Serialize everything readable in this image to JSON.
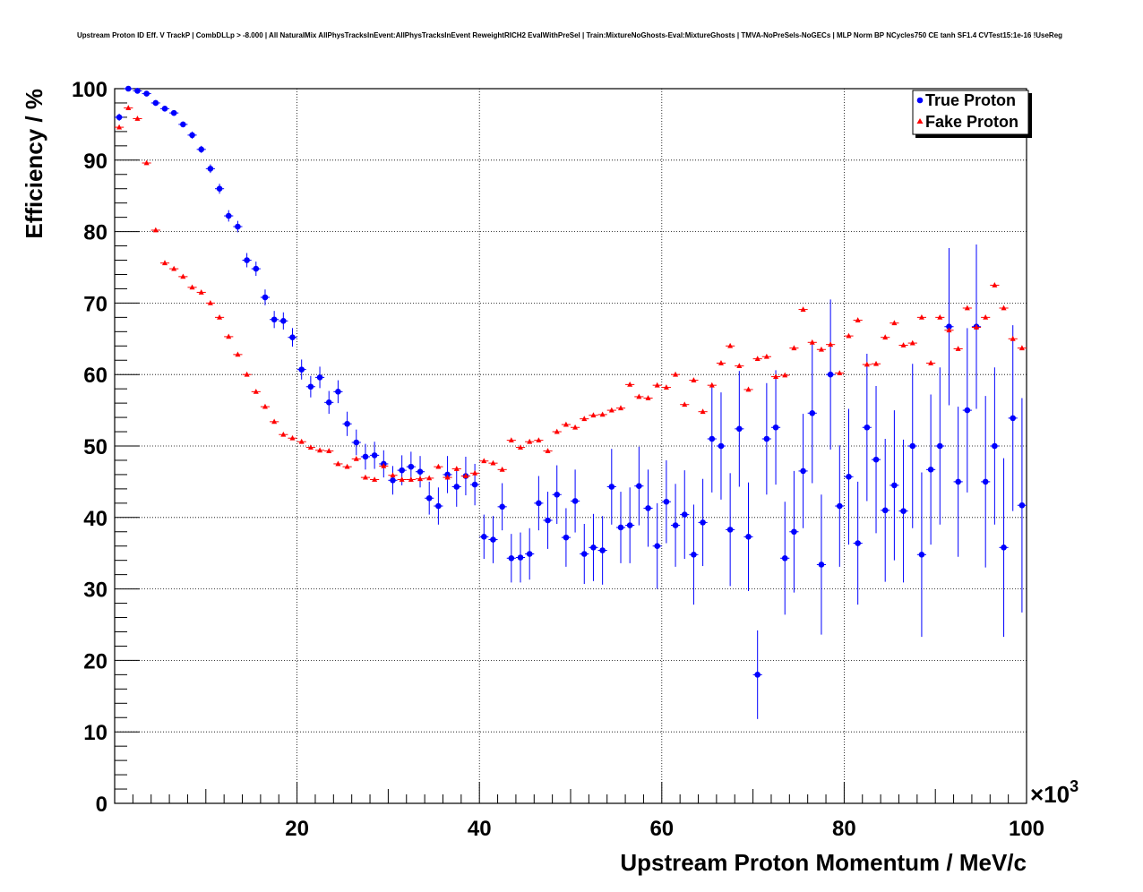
{
  "chart_data": {
    "type": "scatter",
    "title": "Upstream Proton ID Eff. V TrackP | CombDLLp > -8.000 | All NaturalMix AllPhysTracksInEvent:AllPhysTracksInEvent ReweightRICH2 EvalWithPreSel | Train:MixtureNoGhosts-Eval:MixtureGhosts | TMVA-NoPreSels-NoGECs | MLP Norm BP NCycles750 CE tanh SF1.4 CVTest15:1e-16 !UseReg",
    "xlabel": "Upstream Proton Momentum / MeV/c",
    "ylabel": "Efficiency / %",
    "x_multiplier": "×10",
    "x_multiplier_exp": "3",
    "xlim": [
      0,
      100
    ],
    "ylim": [
      0,
      100
    ],
    "xticks": [
      20,
      40,
      60,
      80,
      100
    ],
    "yticks": [
      0,
      10,
      20,
      30,
      40,
      50,
      60,
      70,
      80,
      90,
      100
    ],
    "grid": true,
    "legend_position": "top-right",
    "series": [
      {
        "name": "True Proton",
        "marker": "circle",
        "color": "#0000ff",
        "x": [
          0.5,
          1.5,
          2.5,
          3.5,
          4.5,
          5.5,
          6.5,
          7.5,
          8.5,
          9.5,
          10.5,
          11.5,
          12.5,
          13.5,
          14.5,
          15.5,
          16.5,
          17.5,
          18.5,
          19.5,
          20.5,
          21.5,
          22.5,
          23.5,
          24.5,
          25.5,
          26.5,
          27.5,
          28.5,
          29.5,
          30.5,
          31.5,
          32.5,
          33.5,
          34.5,
          35.5,
          36.5,
          37.5,
          38.5,
          39.5,
          40.5,
          41.5,
          42.5,
          43.5,
          44.5,
          45.5,
          46.5,
          47.5,
          48.5,
          49.5,
          50.5,
          51.5,
          52.5,
          53.5,
          54.5,
          55.5,
          56.5,
          57.5,
          58.5,
          59.5,
          60.5,
          61.5,
          62.5,
          63.5,
          64.5,
          65.5,
          66.5,
          67.5,
          68.5,
          69.5,
          70.5,
          71.5,
          72.5,
          73.5,
          74.5,
          75.5,
          76.5,
          77.5,
          78.5,
          79.5,
          80.5,
          81.5,
          82.5,
          83.5,
          84.5,
          85.5,
          86.5,
          87.5,
          88.5,
          89.5,
          90.5,
          91.5,
          92.5,
          93.5,
          94.5,
          95.5,
          96.5,
          97.5,
          98.5,
          99.5
        ],
        "y": [
          96,
          100,
          99.7,
          99.3,
          98,
          97.2,
          96.6,
          95,
          93.5,
          91.5,
          88.8,
          86,
          82.2,
          80.7,
          76,
          74.8,
          70.8,
          67.7,
          67.5,
          65.2,
          60.7,
          58.3,
          59.6,
          56.1,
          57.6,
          53.1,
          50.5,
          48.5,
          48.7,
          47.5,
          45.2,
          46.6,
          47.1,
          46.4,
          42.7,
          41.6,
          46,
          44.3,
          45.8,
          44.6,
          37.3,
          36.9,
          41.5,
          34.3,
          34.4,
          34.9,
          42,
          39.6,
          43.2,
          37.2,
          42.3,
          34.9,
          35.8,
          35.4,
          44.3,
          38.6,
          38.9,
          44.4,
          41.3,
          36,
          42.2,
          38.9,
          40.4,
          34.8,
          39.3,
          51,
          50,
          38.3,
          52.4,
          37.3,
          18,
          51,
          52.6,
          34.3,
          38,
          46.5,
          54.6,
          33.4,
          60,
          41.6,
          45.7,
          36.4,
          52.6,
          48.1,
          41,
          44.5,
          40.9,
          50,
          34.8,
          46.7,
          50,
          66.7,
          45,
          55,
          66.7,
          45,
          50,
          35.8,
          53.9,
          41.7
        ],
        "yerr": [
          0.5,
          0.3,
          0.3,
          0.3,
          0.4,
          0.4,
          0.4,
          0.4,
          0.5,
          0.5,
          0.6,
          0.7,
          0.8,
          0.8,
          1,
          1,
          1.1,
          1.2,
          1.2,
          1.3,
          1.4,
          1.5,
          1.5,
          1.6,
          1.6,
          1.7,
          1.8,
          1.8,
          1.9,
          1.9,
          2,
          2.1,
          2.1,
          2.2,
          2.3,
          2.6,
          2.6,
          2.8,
          2.7,
          2.9,
          3.1,
          3.3,
          3.3,
          3.4,
          3.5,
          3.6,
          3.8,
          4,
          4.1,
          4.1,
          4.4,
          4.2,
          4.7,
          4.8,
          5.3,
          5,
          5.3,
          5.5,
          5.4,
          6,
          5.8,
          5.8,
          6.2,
          7,
          6.1,
          7.5,
          7.5,
          7.9,
          8.1,
          7.6,
          6.2,
          7.8,
          8,
          7.9,
          8.5,
          8,
          9.8,
          9.8,
          10.5,
          8.5,
          9.5,
          8.6,
          10.3,
          10.3,
          10,
          10.5,
          10,
          11.5,
          11.5,
          10.5,
          11,
          11,
          10.5,
          11.5,
          11.5,
          12,
          11,
          12.5,
          13,
          15
        ]
      },
      {
        "name": "Fake Proton",
        "marker": "triangle",
        "color": "#ff0000",
        "x": [
          0.5,
          1.5,
          2.5,
          3.5,
          4.5,
          5.5,
          6.5,
          7.5,
          8.5,
          9.5,
          10.5,
          11.5,
          12.5,
          13.5,
          14.5,
          15.5,
          16.5,
          17.5,
          18.5,
          19.5,
          20.5,
          21.5,
          22.5,
          23.5,
          24.5,
          25.5,
          26.5,
          27.5,
          28.5,
          29.5,
          30.5,
          31.5,
          32.5,
          33.5,
          34.5,
          35.5,
          36.5,
          37.5,
          38.5,
          39.5,
          40.5,
          41.5,
          42.5,
          43.5,
          44.5,
          45.5,
          46.5,
          47.5,
          48.5,
          49.5,
          50.5,
          51.5,
          52.5,
          53.5,
          54.5,
          55.5,
          56.5,
          57.5,
          58.5,
          59.5,
          60.5,
          61.5,
          62.5,
          63.5,
          64.5,
          65.5,
          66.5,
          67.5,
          68.5,
          69.5,
          70.5,
          71.5,
          72.5,
          73.5,
          74.5,
          75.5,
          76.5,
          77.5,
          78.5,
          79.5,
          80.5,
          81.5,
          82.5,
          83.5,
          84.5,
          85.5,
          86.5,
          87.5,
          88.5,
          89.5,
          90.5,
          91.5,
          92.5,
          93.5,
          94.5,
          95.5,
          96.5,
          97.5,
          98.5,
          99.5
        ],
        "y": [
          94.6,
          97.3,
          95.8,
          89.6,
          80.2,
          75.6,
          74.8,
          73.7,
          72.2,
          71.5,
          70,
          68,
          65.3,
          62.8,
          60,
          57.6,
          55.5,
          53.4,
          51.6,
          51.1,
          50.6,
          49.8,
          49.4,
          49.3,
          47.5,
          47.1,
          48.2,
          45.6,
          45.3,
          47.2,
          45.9,
          45.3,
          45.3,
          45.4,
          45.5,
          47.1,
          45.6,
          46.8,
          45.8,
          46.2,
          47.9,
          47.6,
          46.7,
          50.8,
          49.8,
          50.6,
          50.8,
          49.3,
          52,
          53,
          52.6,
          53.8,
          54.3,
          54.4,
          55,
          55.3,
          58.6,
          56.9,
          56.7,
          58.5,
          58.2,
          60,
          55.8,
          59.2,
          54.8,
          58.5,
          61.6,
          64,
          61.2,
          57.9,
          62.2,
          62.5,
          59.7,
          59.9,
          63.7,
          69.1,
          64.5,
          63.5,
          64.2,
          60.2,
          65.4,
          67.6,
          61.4,
          61.5,
          65.2,
          67.2,
          64.1,
          64.4,
          68,
          61.6,
          68,
          66.2,
          63.6,
          69.3,
          66.6,
          68,
          72.5,
          69.3,
          65,
          63.7
        ]
      }
    ]
  }
}
